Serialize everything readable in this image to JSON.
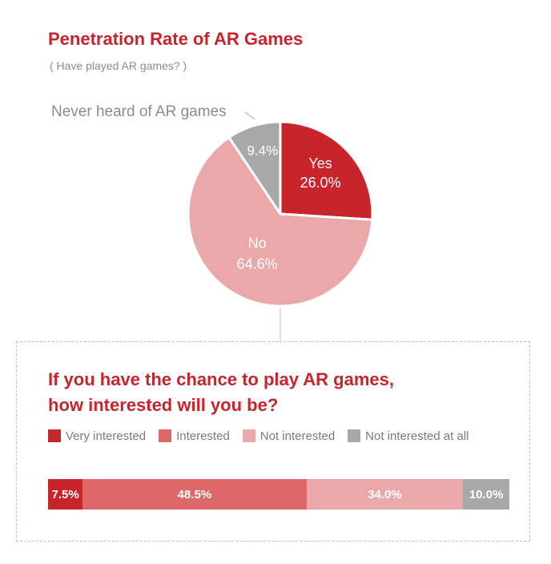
{
  "header": {
    "title": "Penetration Rate of AR Games",
    "subtitle": "( Have played AR games? )"
  },
  "question": {
    "line1": "If you have the chance to play AR games,",
    "line2": "how interested will you be?"
  },
  "chart_data": [
    {
      "type": "pie",
      "title": "Penetration Rate of AR Games",
      "subtitle": "( Have played AR games? )",
      "slices": [
        {
          "label": "Yes",
          "value": 26.0,
          "value_label": "26.0%",
          "color": "#c8242b"
        },
        {
          "label": "No",
          "value": 64.6,
          "value_label": "64.6%",
          "color": "#eba8a8"
        },
        {
          "label": "Never heard of AR games",
          "value": 9.4,
          "value_label": "9.4%",
          "color": "#a8a8a8"
        }
      ]
    },
    {
      "type": "bar",
      "orientation": "horizontal",
      "stacked": true,
      "title": "If you have the chance to play AR games, how interested will you be?",
      "legend_position": "top",
      "series": [
        {
          "name": "Very interested",
          "value": 7.5,
          "value_label": "7.5%",
          "color": "#c8242b"
        },
        {
          "name": "Interested",
          "value": 48.5,
          "value_label": "48.5%",
          "color": "#dd6868"
        },
        {
          "name": "Not interested",
          "value": 34.0,
          "value_label": "34.0%",
          "color": "#eba8a8"
        },
        {
          "name": "Not interested at all",
          "value": 10.0,
          "value_label": "10.0%",
          "color": "#a8a8a8"
        }
      ]
    }
  ],
  "colors": {
    "accent": "#c8242b",
    "connector": "#d9b7b9"
  }
}
